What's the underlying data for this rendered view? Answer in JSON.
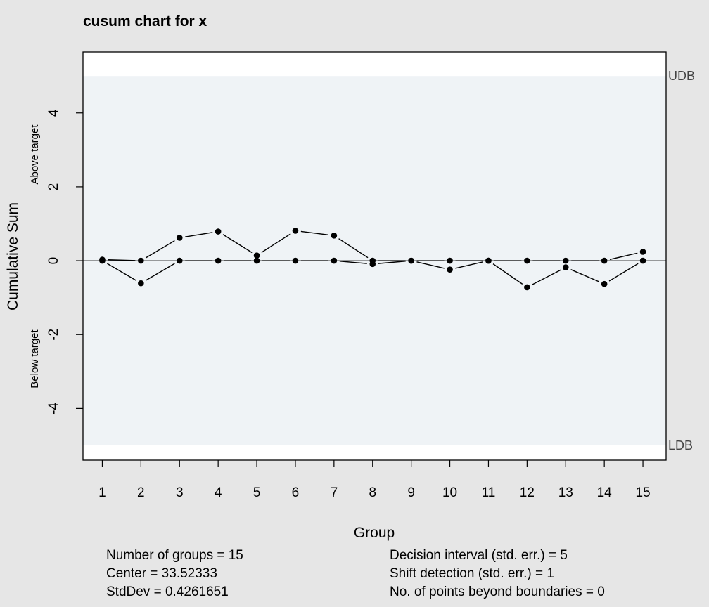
{
  "chart_data": {
    "type": "line",
    "title": "cusum chart for x",
    "xlabel": "Group",
    "ylabel": "Cumulative Sum",
    "ylabel_upper": "Above target",
    "ylabel_lower": "Below target",
    "xlim": [
      0.5,
      15.6
    ],
    "ylim": [
      -5.4,
      5.65
    ],
    "x": [
      1,
      2,
      3,
      4,
      5,
      6,
      7,
      8,
      9,
      10,
      11,
      12,
      13,
      14,
      15
    ],
    "x_ticks": [
      "1",
      "2",
      "3",
      "4",
      "5",
      "6",
      "7",
      "8",
      "9",
      "10",
      "11",
      "12",
      "13",
      "14",
      "15"
    ],
    "y_ticks": [
      "-4",
      "-2",
      "0",
      "2",
      "4"
    ],
    "y_tick_values": [
      -4,
      -2,
      0,
      2,
      4
    ],
    "series": [
      {
        "role": "upper",
        "values": [
          0.03,
          0,
          0.62,
          0.79,
          0.14,
          0.81,
          0.68,
          0,
          0,
          0,
          0,
          0,
          0,
          0,
          0.24
        ]
      },
      {
        "role": "lower",
        "values": [
          0,
          -0.61,
          0,
          0,
          0,
          0,
          0,
          -0.09,
          0,
          -0.24,
          0,
          -0.72,
          -0.18,
          -0.63,
          0
        ]
      }
    ],
    "decision_boundaries": {
      "upper": 5,
      "lower": -5,
      "upper_label": "UDB",
      "lower_label": "LDB"
    },
    "center_line": 0,
    "colors": {
      "page_background": "#e6e6e6",
      "plot_background": "#ffffff",
      "in_control_band": "#eff3f6",
      "points": "#000000",
      "lines": "#000000",
      "boundary_labels": "#444444"
    },
    "legend": "none",
    "grid": false
  },
  "stats": {
    "left": [
      "Number of groups = 15",
      "Center = 33.52333",
      "StdDev = 0.4261651"
    ],
    "right": [
      "Decision interval (std. err.) = 5",
      "Shift detection (std. err.) = 1",
      "No. of points beyond boundaries = 0"
    ]
  }
}
